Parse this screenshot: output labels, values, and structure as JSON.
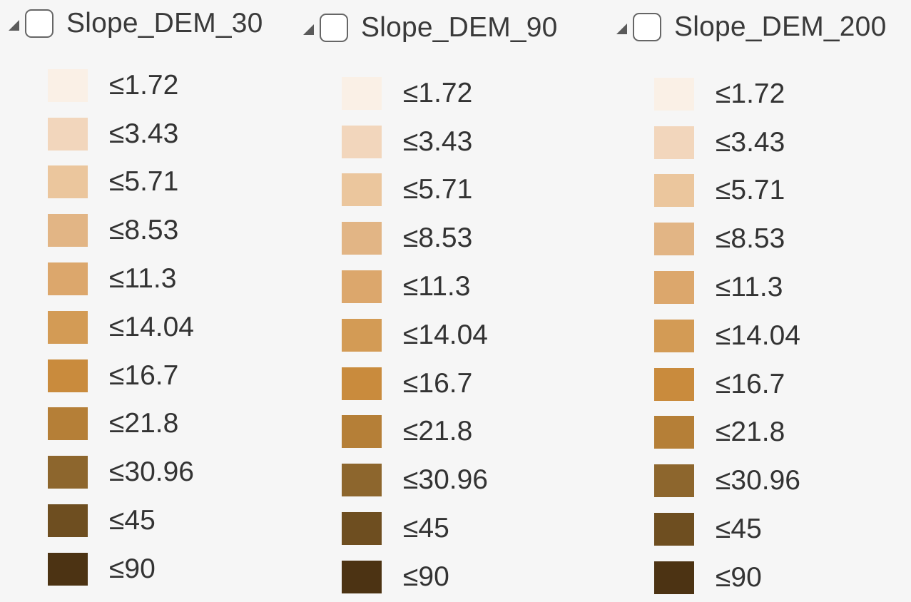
{
  "layers": [
    {
      "name": "Slope_DEM_30",
      "checked": false,
      "classes": [
        {
          "label": "≤1.72",
          "color": "#faf0e6"
        },
        {
          "label": "≤3.43",
          "color": "#f2d6bc"
        },
        {
          "label": "≤5.71",
          "color": "#ebc69d"
        },
        {
          "label": "≤8.53",
          "color": "#e2b585"
        },
        {
          "label": "≤11.3",
          "color": "#dca76c"
        },
        {
          "label": "≤14.04",
          "color": "#d39b55"
        },
        {
          "label": "≤16.7",
          "color": "#c98b3d"
        },
        {
          "label": "≤21.8",
          "color": "#b57f37"
        },
        {
          "label": "≤30.96",
          "color": "#8d662d"
        },
        {
          "label": "≤45",
          "color": "#6e4e20"
        },
        {
          "label": "≤90",
          "color": "#4c3313"
        }
      ]
    },
    {
      "name": "Slope_DEM_90",
      "checked": false,
      "classes": [
        {
          "label": "≤1.72",
          "color": "#faf0e6"
        },
        {
          "label": "≤3.43",
          "color": "#f2d6bc"
        },
        {
          "label": "≤5.71",
          "color": "#ebc69d"
        },
        {
          "label": "≤8.53",
          "color": "#e2b585"
        },
        {
          "label": "≤11.3",
          "color": "#dca76c"
        },
        {
          "label": "≤14.04",
          "color": "#d39b55"
        },
        {
          "label": "≤16.7",
          "color": "#c98b3d"
        },
        {
          "label": "≤21.8",
          "color": "#b57f37"
        },
        {
          "label": "≤30.96",
          "color": "#8d662d"
        },
        {
          "label": "≤45",
          "color": "#6e4e20"
        },
        {
          "label": "≤90",
          "color": "#4c3313"
        }
      ]
    },
    {
      "name": "Slope_DEM_200",
      "checked": false,
      "classes": [
        {
          "label": "≤1.72",
          "color": "#faf0e6"
        },
        {
          "label": "≤3.43",
          "color": "#f2d6bc"
        },
        {
          "label": "≤5.71",
          "color": "#ebc69d"
        },
        {
          "label": "≤8.53",
          "color": "#e2b585"
        },
        {
          "label": "≤11.3",
          "color": "#dca76c"
        },
        {
          "label": "≤14.04",
          "color": "#d39b55"
        },
        {
          "label": "≤16.7",
          "color": "#c98b3d"
        },
        {
          "label": "≤21.8",
          "color": "#b57f37"
        },
        {
          "label": "≤30.96",
          "color": "#8d662d"
        },
        {
          "label": "≤45",
          "color": "#6e4e20"
        },
        {
          "label": "≤90",
          "color": "#4c3313"
        }
      ]
    }
  ],
  "icons": {
    "expander": "collapse-triangle-icon",
    "checkbox": "checkbox-unchecked-icon"
  }
}
